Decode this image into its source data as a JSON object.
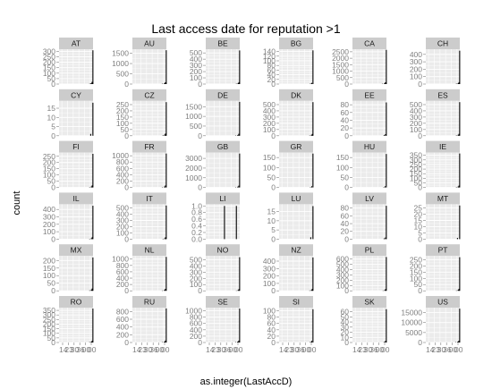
{
  "chart_data": {
    "type": "bar",
    "title": "Last access date for reputation >1",
    "xlabel": "as.integer(LastAccD)",
    "ylabel": "count",
    "facet_layout": {
      "rows": 6,
      "cols": 6
    },
    "x_tick_labels": [
      "14",
      "23",
      "30",
      "36",
      "00",
      "00"
    ],
    "colors": {
      "panel_bg": "#ebebeb",
      "grid": "#ffffff",
      "strip_bg": "#cccccc",
      "bar": "#000000",
      "tick_text": "#7f7f7f"
    },
    "facets": [
      {
        "label": "AT",
        "yticks": [
          "0",
          "50",
          "100",
          "150",
          "200",
          "250",
          "300"
        ],
        "ylim": [
          0,
          320
        ],
        "bars": [
          [
            0.9,
            3
          ],
          [
            0.94,
            8
          ],
          [
            0.97,
            20
          ],
          [
            0.995,
            310
          ]
        ]
      },
      {
        "label": "AU",
        "yticks": [
          "0",
          "500",
          "1000",
          "1500"
        ],
        "ylim": [
          0,
          1700
        ],
        "bars": [
          [
            0.88,
            15
          ],
          [
            0.94,
            40
          ],
          [
            0.97,
            90
          ],
          [
            0.995,
            1650
          ]
        ]
      },
      {
        "label": "BE",
        "yticks": [
          "0",
          "100",
          "200",
          "300",
          "400",
          "500"
        ],
        "ylim": [
          0,
          560
        ],
        "bars": [
          [
            0.9,
            5
          ],
          [
            0.95,
            15
          ],
          [
            0.975,
            30
          ],
          [
            0.995,
            540
          ]
        ]
      },
      {
        "label": "BG",
        "yticks": [
          "0",
          "20",
          "40",
          "60",
          "80",
          "100",
          "120",
          "140"
        ],
        "ylim": [
          0,
          150
        ],
        "bars": [
          [
            0.92,
            2
          ],
          [
            0.96,
            5
          ],
          [
            0.995,
            145
          ]
        ]
      },
      {
        "label": "CA",
        "yticks": [
          "0",
          "500",
          "1000",
          "1500",
          "2000",
          "2500"
        ],
        "ylim": [
          0,
          2700
        ],
        "bars": [
          [
            0.88,
            20
          ],
          [
            0.94,
            60
          ],
          [
            0.97,
            140
          ],
          [
            0.995,
            2650
          ]
        ]
      },
      {
        "label": "CH",
        "yticks": [
          "0",
          "100",
          "200",
          "300",
          "400"
        ],
        "ylim": [
          0,
          470
        ],
        "bars": [
          [
            0.9,
            5
          ],
          [
            0.95,
            12
          ],
          [
            0.975,
            25
          ],
          [
            0.995,
            450
          ]
        ]
      },
      {
        "label": "CY",
        "yticks": [
          "0",
          "5",
          "10",
          "15"
        ],
        "ylim": [
          0,
          19
        ],
        "bars": [
          [
            0.93,
            1
          ],
          [
            0.995,
            18
          ]
        ]
      },
      {
        "label": "CZ",
        "yticks": [
          "0",
          "50",
          "100",
          "150",
          "200",
          "250"
        ],
        "ylim": [
          0,
          280
        ],
        "bars": [
          [
            0.9,
            4
          ],
          [
            0.95,
            10
          ],
          [
            0.975,
            18
          ],
          [
            0.995,
            270
          ]
        ]
      },
      {
        "label": "DE",
        "yticks": [
          "0",
          "500",
          "1000",
          "1500"
        ],
        "ylim": [
          0,
          1800
        ],
        "bars": [
          [
            0.88,
            15
          ],
          [
            0.94,
            40
          ],
          [
            0.97,
            100
          ],
          [
            0.995,
            1750
          ]
        ]
      },
      {
        "label": "DK",
        "yticks": [
          "0",
          "100",
          "200",
          "300",
          "400",
          "500"
        ],
        "ylim": [
          0,
          560
        ],
        "bars": [
          [
            0.9,
            5
          ],
          [
            0.95,
            14
          ],
          [
            0.975,
            28
          ],
          [
            0.995,
            540
          ]
        ]
      },
      {
        "label": "EE",
        "yticks": [
          "0",
          "20",
          "40",
          "60",
          "80"
        ],
        "ylim": [
          0,
          90
        ],
        "bars": [
          [
            0.93,
            2
          ],
          [
            0.97,
            4
          ],
          [
            0.995,
            86
          ]
        ]
      },
      {
        "label": "ES",
        "yticks": [
          "0",
          "100",
          "200",
          "300",
          "400",
          "500"
        ],
        "ylim": [
          0,
          560
        ],
        "bars": [
          [
            0.9,
            6
          ],
          [
            0.95,
            15
          ],
          [
            0.975,
            30
          ],
          [
            0.995,
            540
          ]
        ]
      },
      {
        "label": "FI",
        "yticks": [
          "0",
          "50",
          "100",
          "150",
          "200",
          "250"
        ],
        "ylim": [
          0,
          280
        ],
        "bars": [
          [
            0.9,
            3
          ],
          [
            0.95,
            8
          ],
          [
            0.975,
            16
          ],
          [
            0.995,
            270
          ]
        ]
      },
      {
        "label": "FR",
        "yticks": [
          "0",
          "200",
          "400",
          "600",
          "800",
          "1000"
        ],
        "ylim": [
          0,
          1100
        ],
        "bars": [
          [
            0.88,
            10
          ],
          [
            0.94,
            28
          ],
          [
            0.97,
            60
          ],
          [
            0.995,
            1070
          ]
        ]
      },
      {
        "label": "GB",
        "yticks": [
          "0",
          "1000",
          "2000",
          "3000"
        ],
        "ylim": [
          0,
          3600
        ],
        "bars": [
          [
            0.88,
            30
          ],
          [
            0.94,
            80
          ],
          [
            0.97,
            180
          ],
          [
            0.995,
            3500
          ]
        ]
      },
      {
        "label": "GR",
        "yticks": [
          "0",
          "50",
          "100",
          "150"
        ],
        "ylim": [
          0,
          175
        ],
        "bars": [
          [
            0.92,
            2
          ],
          [
            0.96,
            6
          ],
          [
            0.995,
            170
          ]
        ]
      },
      {
        "label": "HU",
        "yticks": [
          "0",
          "50",
          "100",
          "150"
        ],
        "ylim": [
          0,
          175
        ],
        "bars": [
          [
            0.92,
            2
          ],
          [
            0.96,
            6
          ],
          [
            0.995,
            168
          ]
        ]
      },
      {
        "label": "IE",
        "yticks": [
          "0",
          "50",
          "100",
          "150",
          "200",
          "250",
          "300",
          "350"
        ],
        "ylim": [
          0,
          380
        ],
        "bars": [
          [
            0.9,
            4
          ],
          [
            0.95,
            10
          ],
          [
            0.975,
            20
          ],
          [
            0.995,
            370
          ]
        ]
      },
      {
        "label": "IL",
        "yticks": [
          "0",
          "100",
          "200",
          "300",
          "400"
        ],
        "ylim": [
          0,
          470
        ],
        "bars": [
          [
            0.9,
            5
          ],
          [
            0.95,
            12
          ],
          [
            0.975,
            25
          ],
          [
            0.995,
            450
          ]
        ]
      },
      {
        "label": "IT",
        "yticks": [
          "0",
          "100",
          "200",
          "300",
          "400",
          "500"
        ],
        "ylim": [
          0,
          560
        ],
        "bars": [
          [
            0.9,
            6
          ],
          [
            0.95,
            14
          ],
          [
            0.975,
            30
          ],
          [
            0.995,
            540
          ]
        ]
      },
      {
        "label": "LI",
        "yticks": [
          "0.0",
          "0.2",
          "0.4",
          "0.6",
          "0.8",
          "1.0"
        ],
        "ylim": [
          0,
          1.05
        ],
        "bars": [
          [
            0.55,
            1
          ],
          [
            0.9,
            1
          ]
        ]
      },
      {
        "label": "LU",
        "yticks": [
          "0",
          "5",
          "10",
          "15"
        ],
        "ylim": [
          0,
          19
        ],
        "bars": [
          [
            0.93,
            1
          ],
          [
            0.995,
            18
          ]
        ]
      },
      {
        "label": "LV",
        "yticks": [
          "0",
          "20",
          "40",
          "60",
          "80"
        ],
        "ylim": [
          0,
          90
        ],
        "bars": [
          [
            0.93,
            2
          ],
          [
            0.97,
            4
          ],
          [
            0.995,
            86
          ]
        ]
      },
      {
        "label": "MT",
        "yticks": [
          "0",
          "5",
          "10",
          "15",
          "20",
          "25"
        ],
        "ylim": [
          0,
          28
        ],
        "bars": [
          [
            0.93,
            1
          ],
          [
            0.995,
            27
          ]
        ]
      },
      {
        "label": "MX",
        "yticks": [
          "0",
          "50",
          "100",
          "150",
          "200"
        ],
        "ylim": [
          0,
          230
        ],
        "bars": [
          [
            0.9,
            3
          ],
          [
            0.95,
            8
          ],
          [
            0.975,
            15
          ],
          [
            0.995,
            220
          ]
        ]
      },
      {
        "label": "NL",
        "yticks": [
          "0",
          "200",
          "400",
          "600",
          "800",
          "1000"
        ],
        "ylim": [
          0,
          1100
        ],
        "bars": [
          [
            0.88,
            10
          ],
          [
            0.94,
            28
          ],
          [
            0.97,
            60
          ],
          [
            0.995,
            1070
          ]
        ]
      },
      {
        "label": "NO",
        "yticks": [
          "0",
          "100",
          "200",
          "300",
          "400",
          "500"
        ],
        "ylim": [
          0,
          560
        ],
        "bars": [
          [
            0.9,
            5
          ],
          [
            0.95,
            13
          ],
          [
            0.975,
            26
          ],
          [
            0.995,
            540
          ]
        ]
      },
      {
        "label": "NZ",
        "yticks": [
          "0",
          "100",
          "200",
          "300",
          "400"
        ],
        "ylim": [
          0,
          470
        ],
        "bars": [
          [
            0.9,
            5
          ],
          [
            0.95,
            12
          ],
          [
            0.975,
            25
          ],
          [
            0.995,
            450
          ]
        ]
      },
      {
        "label": "PL",
        "yticks": [
          "0",
          "100",
          "200",
          "300",
          "400",
          "500",
          "600"
        ],
        "ylim": [
          0,
          660
        ],
        "bars": [
          [
            0.9,
            6
          ],
          [
            0.95,
            16
          ],
          [
            0.975,
            32
          ],
          [
            0.995,
            640
          ]
        ]
      },
      {
        "label": "PT",
        "yticks": [
          "0",
          "50",
          "100",
          "150",
          "200",
          "250"
        ],
        "ylim": [
          0,
          280
        ],
        "bars": [
          [
            0.9,
            3
          ],
          [
            0.95,
            8
          ],
          [
            0.975,
            16
          ],
          [
            0.995,
            270
          ]
        ]
      },
      {
        "label": "RO",
        "yticks": [
          "0",
          "50",
          "100",
          "150",
          "200",
          "250",
          "300",
          "350"
        ],
        "ylim": [
          0,
          380
        ],
        "bars": [
          [
            0.9,
            4
          ],
          [
            0.95,
            10
          ],
          [
            0.975,
            20
          ],
          [
            0.995,
            370
          ]
        ]
      },
      {
        "label": "RU",
        "yticks": [
          "0",
          "200",
          "400",
          "600",
          "800"
        ],
        "ylim": [
          0,
          900
        ],
        "bars": [
          [
            0.88,
            8
          ],
          [
            0.94,
            22
          ],
          [
            0.97,
            50
          ],
          [
            0.995,
            880
          ]
        ]
      },
      {
        "label": "SE",
        "yticks": [
          "0",
          "200",
          "400",
          "600",
          "800",
          "1000"
        ],
        "ylim": [
          0,
          1100
        ],
        "bars": [
          [
            0.88,
            10
          ],
          [
            0.94,
            28
          ],
          [
            0.97,
            60
          ],
          [
            0.995,
            1070
          ]
        ]
      },
      {
        "label": "SI",
        "yticks": [
          "0",
          "20",
          "40",
          "60",
          "80",
          "100"
        ],
        "ylim": [
          0,
          110
        ],
        "bars": [
          [
            0.92,
            2
          ],
          [
            0.96,
            5
          ],
          [
            0.995,
            105
          ]
        ]
      },
      {
        "label": "SK",
        "yticks": [
          "0",
          "10",
          "20",
          "30",
          "40",
          "50",
          "60"
        ],
        "ylim": [
          0,
          68
        ],
        "bars": [
          [
            0.93,
            1
          ],
          [
            0.97,
            3
          ],
          [
            0.995,
            65
          ]
        ]
      },
      {
        "label": "US",
        "yticks": [
          "0",
          "5000",
          "10000",
          "15000"
        ],
        "ylim": [
          0,
          17500
        ],
        "bars": [
          [
            0.88,
            150
          ],
          [
            0.94,
            400
          ],
          [
            0.97,
            900
          ],
          [
            0.995,
            17000
          ]
        ]
      }
    ]
  }
}
